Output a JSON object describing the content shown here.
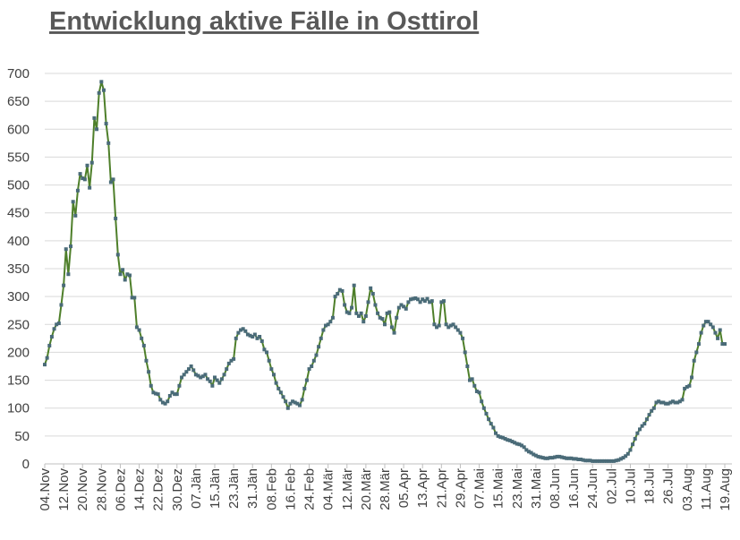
{
  "chart_data": {
    "type": "line",
    "title": "Entwicklung aktive Fälle in Osttirol",
    "categories": [
      "04.Nov",
      null,
      null,
      null,
      null,
      null,
      null,
      null,
      "12.Nov",
      null,
      null,
      null,
      null,
      null,
      null,
      null,
      "20.Nov",
      null,
      null,
      null,
      null,
      null,
      null,
      null,
      "28.Nov",
      null,
      null,
      null,
      null,
      null,
      null,
      null,
      "06.Dez",
      null,
      null,
      null,
      null,
      null,
      null,
      null,
      "14.Dez",
      null,
      null,
      null,
      null,
      null,
      null,
      null,
      "22.Dez",
      null,
      null,
      null,
      null,
      null,
      null,
      null,
      "30.Dez",
      null,
      null,
      null,
      null,
      null,
      null,
      null,
      "07.Jän",
      null,
      null,
      null,
      null,
      null,
      null,
      null,
      "15.Jän",
      null,
      null,
      null,
      null,
      null,
      null,
      null,
      "23.Jän",
      null,
      null,
      null,
      null,
      null,
      null,
      null,
      "31.Jän",
      null,
      null,
      null,
      null,
      null,
      null,
      null,
      "08.Feb",
      null,
      null,
      null,
      null,
      null,
      null,
      null,
      "16.Feb",
      null,
      null,
      null,
      null,
      null,
      null,
      null,
      "24.Feb",
      null,
      null,
      null,
      null,
      null,
      null,
      null,
      "04.Mär",
      null,
      null,
      null,
      null,
      null,
      null,
      null,
      "12.Mär",
      null,
      null,
      null,
      null,
      null,
      null,
      null,
      "20.Mär",
      null,
      null,
      null,
      null,
      null,
      null,
      null,
      "28.Mär",
      null,
      null,
      null,
      null,
      null,
      null,
      null,
      "05.Apr",
      null,
      null,
      null,
      null,
      null,
      null,
      null,
      "13.Apr",
      null,
      null,
      null,
      null,
      null,
      null,
      null,
      "21.Apr",
      null,
      null,
      null,
      null,
      null,
      null,
      null,
      "29.Apr",
      null,
      null,
      null,
      null,
      null,
      null,
      null,
      "07.Mai",
      null,
      null,
      null,
      null,
      null,
      null,
      null,
      "15.Mai",
      null,
      null,
      null,
      null,
      null,
      null,
      null,
      "23.Mai",
      null,
      null,
      null,
      null,
      null,
      null,
      null,
      "31.Mai",
      null,
      null,
      null,
      null,
      null,
      null,
      null,
      "08.Jun",
      null,
      null,
      null,
      null,
      null,
      null,
      null,
      "16.Jun",
      null,
      null,
      null,
      null,
      null,
      null,
      null,
      "24.Jun",
      null,
      null,
      null,
      null,
      null,
      null,
      null,
      "02.Jul",
      null,
      null,
      null,
      null,
      null,
      null,
      null,
      "10.Jul",
      null,
      null,
      null,
      null,
      null,
      null,
      null,
      "18.Jul",
      null,
      null,
      null,
      null,
      null,
      null,
      null,
      "26.Jul",
      null,
      null,
      null,
      null,
      null,
      null,
      null,
      "03.Aug",
      null,
      null,
      null,
      null,
      null,
      null,
      null,
      "11.Aug",
      null,
      null,
      null,
      null,
      null,
      null,
      null,
      "19.Aug"
    ],
    "series": [
      {
        "color": "#4e7f2a",
        "marker_color": "#4a6b78",
        "values": [
          178,
          190,
          212,
          228,
          242,
          250,
          252,
          285,
          320,
          385,
          340,
          390,
          470,
          445,
          490,
          520,
          512,
          510,
          535,
          495,
          540,
          620,
          600,
          665,
          685,
          670,
          610,
          575,
          505,
          510,
          440,
          375,
          340,
          348,
          330,
          340,
          338,
          298,
          298,
          245,
          240,
          225,
          212,
          185,
          165,
          140,
          128,
          126,
          125,
          115,
          110,
          108,
          112,
          122,
          128,
          125,
          125,
          140,
          155,
          160,
          165,
          170,
          175,
          168,
          160,
          158,
          155,
          157,
          160,
          152,
          148,
          140,
          155,
          150,
          145,
          152,
          160,
          170,
          180,
          185,
          188,
          225,
          235,
          240,
          242,
          238,
          232,
          230,
          228,
          232,
          225,
          228,
          220,
          205,
          200,
          185,
          170,
          160,
          145,
          135,
          128,
          120,
          112,
          100,
          108,
          112,
          110,
          108,
          105,
          115,
          135,
          150,
          170,
          175,
          185,
          195,
          210,
          225,
          240,
          248,
          250,
          255,
          262,
          300,
          305,
          312,
          310,
          285,
          272,
          270,
          280,
          320,
          270,
          265,
          270,
          255,
          265,
          290,
          315,
          305,
          285,
          270,
          262,
          260,
          250,
          270,
          272,
          245,
          235,
          262,
          280,
          285,
          282,
          278,
          290,
          295,
          296,
          297,
          295,
          290,
          295,
          292,
          296,
          290,
          292,
          250,
          245,
          248,
          290,
          292,
          250,
          245,
          248,
          250,
          245,
          240,
          235,
          225,
          200,
          175,
          150,
          152,
          140,
          130,
          128,
          112,
          100,
          90,
          80,
          72,
          65,
          55,
          50,
          48,
          47,
          45,
          43,
          42,
          40,
          38,
          36,
          35,
          33,
          30,
          25,
          22,
          20,
          17,
          15,
          13,
          12,
          11,
          10,
          10,
          11,
          11,
          12,
          13,
          13,
          12,
          11,
          10,
          10,
          10,
          9,
          9,
          8,
          8,
          7,
          6,
          6,
          6,
          5,
          5,
          5,
          5,
          5,
          5,
          5,
          5,
          5,
          5,
          6,
          7,
          9,
          11,
          14,
          18,
          25,
          35,
          45,
          55,
          62,
          68,
          72,
          80,
          88,
          95,
          100,
          110,
          112,
          110,
          110,
          108,
          108,
          110,
          112,
          110,
          110,
          112,
          115,
          135,
          138,
          140,
          155,
          185,
          200,
          215,
          235,
          248,
          255,
          255,
          250,
          245,
          235,
          225,
          240,
          215,
          215
        ]
      }
    ],
    "ylim": [
      0,
      700
    ],
    "yticks": [
      0,
      50,
      100,
      150,
      200,
      250,
      300,
      350,
      400,
      450,
      500,
      550,
      600,
      650,
      700
    ],
    "grid": true
  }
}
